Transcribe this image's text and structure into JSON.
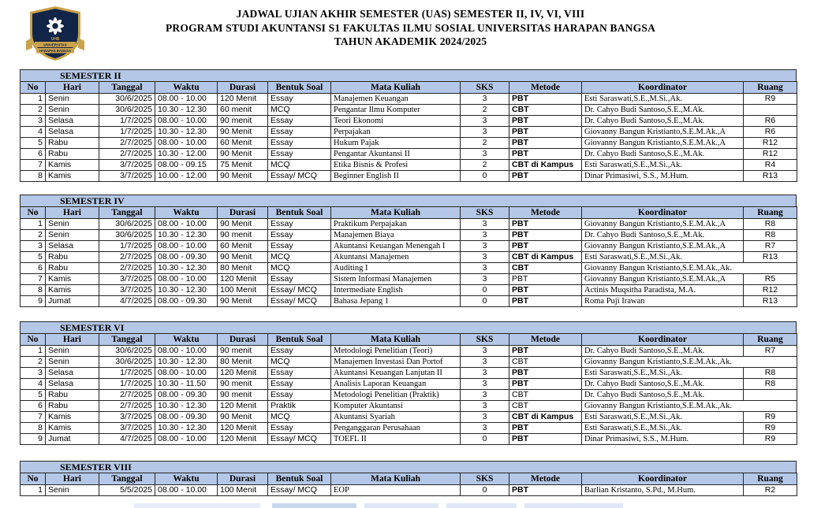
{
  "title": {
    "line1": "JADWAL UJIAN AKHIR SEMESTER (UAS) SEMESTER II, IV, VI, VIII",
    "line2": "PROGRAM STUDI AKUNTANSI S1 FAKULTAS ILMU SOSIAL UNIVERSITAS HARAPAN BANGSA",
    "line3": "TAHUN AKADEMIK 2024/2025"
  },
  "logo": {
    "name": "universitas-harapan-bangsa-crest",
    "acronym": "UHB",
    "text_line1": "UNIVERSITAS",
    "text_line2": "HARAPAN BANGSA"
  },
  "columns": [
    "No",
    "Hari",
    "Tanggal",
    "Waktu",
    "Durasi",
    "Bentuk Soal",
    "Mata Kuliah",
    "SKS",
    "Metode",
    "Koordinator",
    "Ruang"
  ],
  "colors": {
    "header_fill": "#b4c7e7",
    "border": "#262626",
    "crest_navy": "#122448",
    "crest_gold": "#c9a24b"
  },
  "sections": [
    {
      "title": "SEMESTER II",
      "rows": [
        {
          "no": "1",
          "hari": "Senin",
          "tanggal": "30/6/2025",
          "waktu": "08.00 - 10.00",
          "durasi": "120 Menit",
          "bentuk_soal": "Essay",
          "mata_kuliah": "Manajemen Keuangan",
          "sks": "3",
          "metode": "PBT",
          "metode_bold": true,
          "koordinator": "Esti Saraswati,S.E.,M.Si.,Ak.",
          "koordinator_spill": false,
          "ruang": "R9"
        },
        {
          "no": "2",
          "hari": "Senin",
          "tanggal": "30/6/2025",
          "waktu": "10.30 - 12.30",
          "durasi": "60 menit",
          "bentuk_soal": "MCQ",
          "mata_kuliah": "Pengantar Ilmu Komputer",
          "sks": "2",
          "metode": "CBT",
          "metode_bold": true,
          "koordinator": "Dr. Cahyo Budi Santoso,S.E.,M.Ak.",
          "koordinator_spill": false,
          "ruang": ""
        },
        {
          "no": "3",
          "hari": "Selasa",
          "tanggal": "1/7/2025",
          "waktu": "08.00 - 10.00",
          "durasi": "90 menit",
          "bentuk_soal": "Essay",
          "mata_kuliah": "Teori Ekonomi",
          "sks": "3",
          "metode": "PBT",
          "metode_bold": true,
          "koordinator": "Dr. Cahyo Budi Santoso,S.E.,M.Ak.",
          "koordinator_spill": false,
          "ruang": "R6"
        },
        {
          "no": "4",
          "hari": "Selasa",
          "tanggal": "1/7/2025",
          "waktu": "10.30 - 12.30",
          "durasi": "90 Menit",
          "bentuk_soal": "Essay",
          "mata_kuliah": "Perpajakan",
          "sks": "3",
          "metode": "PBT",
          "metode_bold": true,
          "koordinator": "Giovanny Bangun Kristianto,S.E.M.Ak.,A",
          "koordinator_spill": false,
          "ruang": "R6"
        },
        {
          "no": "5",
          "hari": "Rabu",
          "tanggal": "2/7/2025",
          "waktu": "08.00 - 10.00",
          "durasi": "60 Menit",
          "bentuk_soal": "Essay",
          "mata_kuliah": "Hukum Pajak",
          "sks": "2",
          "metode": "PBT",
          "metode_bold": true,
          "koordinator": "Giovanny Bangun Kristianto,S.E.M.Ak.,A",
          "koordinator_spill": false,
          "ruang": "R12"
        },
        {
          "no": "6",
          "hari": "Rabu",
          "tanggal": "2/7/2025",
          "waktu": "10.30 - 12.00",
          "durasi": "90 Menit",
          "bentuk_soal": "Essay",
          "mata_kuliah": "Pengantar Akuntansi II",
          "sks": "3",
          "metode": "PBT",
          "metode_bold": true,
          "koordinator": "Dr. Cahyo Budi Santoso,S.E.,M.Ak.",
          "koordinator_spill": false,
          "ruang": "R12"
        },
        {
          "no": "7",
          "hari": "Kamis",
          "tanggal": "3/7/2025",
          "waktu": "08.00 - 09.15",
          "durasi": "75 Menit",
          "bentuk_soal": "MCQ",
          "mata_kuliah": "Etika Bisnis & Profesi",
          "sks": "2",
          "metode": "CBT di Kampus",
          "metode_bold": true,
          "koordinator": "Esti Saraswati,S.E.,M.Si.,Ak.",
          "koordinator_spill": false,
          "ruang": "R4"
        },
        {
          "no": "8",
          "hari": "Kamis",
          "tanggal": "3/7/2025",
          "waktu": "10.00 - 12.00",
          "durasi": "90 Menit",
          "bentuk_soal": "Essay/ MCQ",
          "mata_kuliah": "Beginner English II",
          "sks": "0",
          "metode": "PBT",
          "metode_bold": true,
          "koordinator": "Dinar Primasiwi, S.S., M.Hum.",
          "koordinator_spill": false,
          "ruang": "R13"
        }
      ]
    },
    {
      "title": "SEMESTER IV",
      "rows": [
        {
          "no": "1",
          "hari": "Senin",
          "tanggal": "30/6/2025",
          "waktu": "08.00 - 10.00",
          "durasi": "90 Menit",
          "bentuk_soal": "Essay",
          "mata_kuliah": "Praktikum Perpajakan",
          "sks": "3",
          "metode": "PBT",
          "metode_bold": true,
          "koordinator": "Giovanny Bangun Kristianto,S.E.M.Ak.,A",
          "koordinator_spill": false,
          "ruang": "R8"
        },
        {
          "no": "2",
          "hari": "Senin",
          "tanggal": "30/6/2025",
          "waktu": "10.30 - 12.30",
          "durasi": "90 menit",
          "bentuk_soal": "Essay",
          "mata_kuliah": "Manajemen Biaya",
          "sks": "3",
          "metode": "PBT",
          "metode_bold": true,
          "koordinator": "Dr. Cahyo Budi Santoso,S.E.,M.Ak.",
          "koordinator_spill": false,
          "ruang": "R8"
        },
        {
          "no": "3",
          "hari": "Selasa",
          "tanggal": "1/7/2025",
          "waktu": "08.00 - 10.00",
          "durasi": "60 Menit",
          "bentuk_soal": "Essay",
          "mata_kuliah": "Akuntansi Keuangan Menengah I",
          "sks": "3",
          "metode": "PBT",
          "metode_bold": true,
          "koordinator": "Giovanny Bangun Kristianto,S.E.M.Ak.,A",
          "koordinator_spill": false,
          "ruang": "R7"
        },
        {
          "no": "5",
          "hari": "Rabu",
          "tanggal": "2/7/2025",
          "waktu": "08.00 - 09.30",
          "durasi": "90 Menit",
          "bentuk_soal": "MCQ",
          "mata_kuliah": "Akuntansi Manajemen",
          "sks": "3",
          "metode": "CBT di Kampus",
          "metode_bold": true,
          "koordinator": "Esti Saraswati,S.E.,M.Si.,Ak.",
          "koordinator_spill": false,
          "ruang": "R13"
        },
        {
          "no": "6",
          "hari": "Rabu",
          "tanggal": "2/7/2025",
          "waktu": "10.30 - 12.30",
          "durasi": "80 Menit",
          "bentuk_soal": "MCQ",
          "mata_kuliah": "Auditing I",
          "sks": "3",
          "metode": "CBT",
          "metode_bold": true,
          "koordinator": "Giovanny Bangun Kristianto,S.E.M.Ak.,Ak.",
          "koordinator_spill": true,
          "ruang": ""
        },
        {
          "no": "7",
          "hari": "Kamis",
          "tanggal": "3/7/2025",
          "waktu": "08.00 - 10.00",
          "durasi": "120 Menit",
          "bentuk_soal": "Essay",
          "mata_kuliah": "Sistem Informasi Manajemen",
          "sks": "3",
          "metode": "PBT",
          "metode_bold": false,
          "koordinator": "Giovanny Bangun Kristianto,S.E.M.Ak.,A",
          "koordinator_spill": false,
          "ruang": "R5"
        },
        {
          "no": "8",
          "hari": "Kamis",
          "tanggal": "3/7/2025",
          "waktu": "10.30 - 12.30",
          "durasi": "100 Menit",
          "bentuk_soal": "Essay/ MCQ",
          "mata_kuliah": "Intermediate English",
          "sks": "0",
          "metode": "PBT",
          "metode_bold": true,
          "koordinator": "Actinis Muqsitha Paradista, M.A.",
          "koordinator_spill": false,
          "ruang": "R12"
        },
        {
          "no": "9",
          "hari": "Jumat",
          "tanggal": "4/7/2025",
          "waktu": "08.00 - 09.30",
          "durasi": "90 Menit",
          "bentuk_soal": "Essay/ MCQ",
          "mata_kuliah": "Bahasa Jepang 1",
          "sks": "0",
          "metode": "PBT",
          "metode_bold": true,
          "koordinator": "Roma Puji Irawan",
          "koordinator_spill": false,
          "ruang": "R13"
        }
      ]
    },
    {
      "title": "SEMESTER VI",
      "rows": [
        {
          "no": "1",
          "hari": "Senin",
          "tanggal": "30/6/2025",
          "waktu": "08.00 - 10.00",
          "durasi": "90 menit",
          "bentuk_soal": "Essay",
          "mata_kuliah": "Metodologi Penelitian (Teori)",
          "sks": "3",
          "metode": "PBT",
          "metode_bold": true,
          "koordinator": "Dr. Cahyo Budi Santoso,S.E.,M.Ak.",
          "koordinator_spill": false,
          "ruang": "R7"
        },
        {
          "no": "2",
          "hari": "Senin",
          "tanggal": "30/6/2025",
          "waktu": "10.30 - 12.30",
          "durasi": "80 Menit",
          "bentuk_soal": "MCQ",
          "mata_kuliah": "Manajemen Investasi Dan Portof",
          "sks": "3",
          "metode": "CBT",
          "metode_bold": false,
          "koordinator": "Giovanny Bangun Kristianto,S.E.M.Ak.,Ak.",
          "koordinator_spill": true,
          "ruang": ""
        },
        {
          "no": "3",
          "hari": "Selasa",
          "tanggal": "1/7/2025",
          "waktu": "08.00 - 10.00",
          "durasi": "120 Menit",
          "bentuk_soal": "Essay",
          "mata_kuliah": "Akuntansi Keuangan Lanjutan II",
          "sks": "3",
          "metode": "PBT",
          "metode_bold": true,
          "koordinator": "Esti Saraswati,S.E.,M.Si.,Ak.",
          "koordinator_spill": false,
          "ruang": "R8"
        },
        {
          "no": "4",
          "hari": "Selasa",
          "tanggal": "1/7/2025",
          "waktu": "10.30 - 11.50",
          "durasi": "90 menit",
          "bentuk_soal": "Essay",
          "mata_kuliah": "Analisis Laporan Keuangan",
          "sks": "3",
          "metode": "PBT",
          "metode_bold": true,
          "koordinator": "Dr. Cahyo Budi Santoso,S.E.,M.Ak.",
          "koordinator_spill": false,
          "ruang": "R8"
        },
        {
          "no": "5",
          "hari": "Rabu",
          "tanggal": "2/7/2025",
          "waktu": "08.00 - 09.30",
          "durasi": "90 menit",
          "bentuk_soal": "Essay",
          "mata_kuliah": "Metodologi Penelitian (Praktik)",
          "sks": "3",
          "metode": "CBT",
          "metode_bold": false,
          "koordinator": "Dr. Cahyo Budi Santoso,S.E.,M.Ak.",
          "koordinator_spill": false,
          "ruang": ""
        },
        {
          "no": "6",
          "hari": "Rabu",
          "tanggal": "2/7/2025",
          "waktu": "10.30 - 12.30",
          "durasi": "120 Menit",
          "bentuk_soal": "Praktik",
          "mata_kuliah": "Komputer Akuntansi",
          "sks": "3",
          "metode": "CBT",
          "metode_bold": false,
          "koordinator": "Giovanny Bangun Kristianto,S.E.M.Ak.,Ak.",
          "koordinator_spill": true,
          "ruang": ""
        },
        {
          "no": "7",
          "hari": "Kamis",
          "tanggal": "3/7/2025",
          "waktu": "08.00 - 09.30",
          "durasi": "90 Menit",
          "bentuk_soal": "MCQ",
          "mata_kuliah": "Akuntansi Syariah",
          "sks": "3",
          "metode": "CBT di Kampus",
          "metode_bold": true,
          "koordinator": "Esti Saraswati,S.E.,M.Si.,Ak.",
          "koordinator_spill": false,
          "ruang": "R9"
        },
        {
          "no": "8",
          "hari": "Kamis",
          "tanggal": "3/7/2025",
          "waktu": "10.30 - 12.30",
          "durasi": "120 Menit",
          "bentuk_soal": "Essay",
          "mata_kuliah": "Penganggaran Perusahaan",
          "sks": "3",
          "metode": "PBT",
          "metode_bold": true,
          "koordinator": "Esti Saraswati,S.E.,M.Si.,Ak.",
          "koordinator_spill": false,
          "ruang": "R9"
        },
        {
          "no": "9",
          "hari": "Jumat",
          "tanggal": "4/7/2025",
          "waktu": "08.00 - 10.00",
          "durasi": "120 Menit",
          "bentuk_soal": "Essay/ MCQ",
          "mata_kuliah": "TOEFL II",
          "sks": "0",
          "metode": "PBT",
          "metode_bold": true,
          "koordinator": "Dinar Primasiwi, S.S., M.Hum.",
          "koordinator_spill": false,
          "ruang": "R9"
        }
      ]
    },
    {
      "title": "SEMESTER VIII",
      "rows": [
        {
          "no": "1",
          "hari": "Senin",
          "tanggal": "5/5/2025",
          "waktu": "08.00 - 10.00",
          "durasi": "100 Menit",
          "bentuk_soal": "Essay/ MCQ",
          "mata_kuliah": "EOP",
          "sks": "0",
          "metode": "PBT",
          "metode_bold": true,
          "koordinator": "Barlian Kristanto, S.Pd., M.Hum.",
          "koordinator_spill": false,
          "ruang": "R2"
        }
      ]
    }
  ]
}
